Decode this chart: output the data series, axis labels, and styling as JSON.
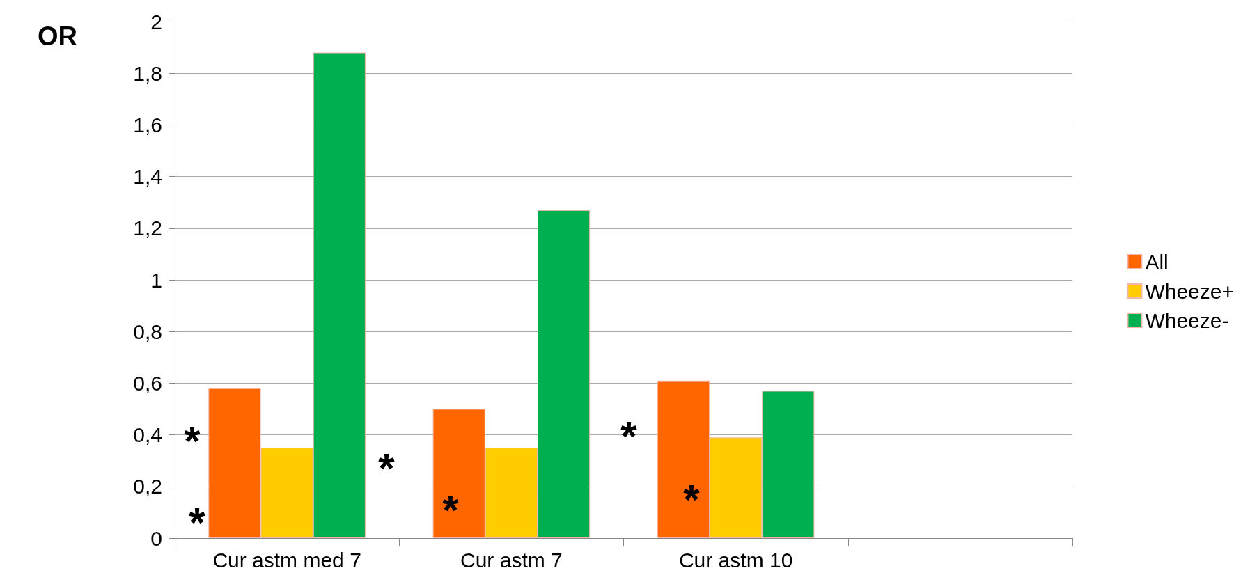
{
  "chart_data": {
    "type": "bar",
    "ylabel": "OR",
    "categories": [
      "Cur astm med 7",
      "Cur astm 7",
      "Cur astm 10",
      null
    ],
    "series": [
      {
        "name": "All",
        "color": "#ff6600",
        "values": [
          0.58,
          0.5,
          0.61,
          null
        ]
      },
      {
        "name": "Wheeze+",
        "color": "#ffcc00",
        "values": [
          0.35,
          0.35,
          0.39,
          null
        ]
      },
      {
        "name": "Wheeze-",
        "color": "#00b050",
        "values": [
          1.88,
          1.27,
          0.57,
          null
        ]
      }
    ],
    "ylim": [
      0,
      2
    ],
    "yticks": [
      {
        "value": 0,
        "label": "0"
      },
      {
        "value": 0.2,
        "label": "0,2"
      },
      {
        "value": 0.4,
        "label": "0,4"
      },
      {
        "value": 0.6,
        "label": "0,6"
      },
      {
        "value": 0.8,
        "label": "0,8"
      },
      {
        "value": 1,
        "label": "1"
      },
      {
        "value": 1.2,
        "label": "1,2"
      },
      {
        "value": 1.4,
        "label": "1,4"
      },
      {
        "value": 1.6,
        "label": "1,6"
      },
      {
        "value": 1.8,
        "label": "1,8"
      },
      {
        "value": 2,
        "label": "2"
      }
    ],
    "grid": "y",
    "legend": "right",
    "annotations": [
      "*",
      "*",
      "*",
      "*",
      "*",
      "*"
    ]
  }
}
